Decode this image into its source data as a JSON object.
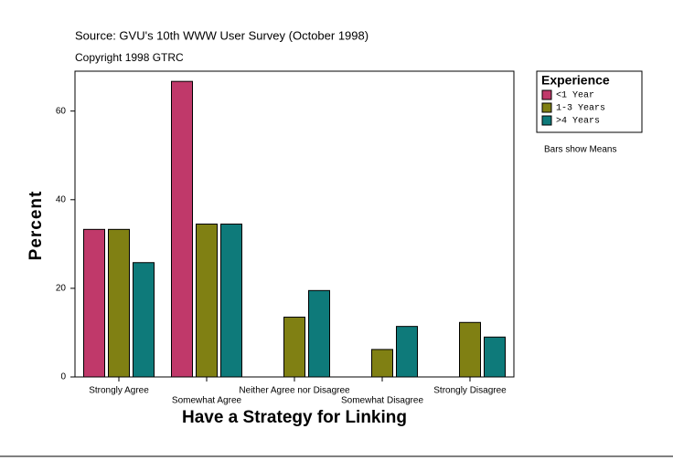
{
  "chart_data": {
    "type": "bar",
    "title": "Source: GVU's 10th WWW User Survey (October 1998)",
    "subtitle": "Copyright 1998 GTRC",
    "x_label": "Have a Strategy for Linking",
    "y_label": "Percent",
    "legend_title": "Experience",
    "note": "Bars show Means",
    "categories": [
      "Strongly Agree",
      "Somewhat Agree",
      "Neither Agree nor Disagree",
      "Somewhat Disagree",
      "Strongly Disagree"
    ],
    "series": [
      {
        "name": "<1 Year",
        "color": "#c0396a",
        "values": [
          33.3,
          66.7,
          null,
          null,
          null
        ]
      },
      {
        "name": "1-3 Years",
        "color": "#808013",
        "values": [
          33.3,
          34.5,
          13.5,
          6.2,
          12.3
        ]
      },
      {
        "name": ">4 Years",
        "color": "#0e7a7a",
        "values": [
          25.8,
          34.5,
          19.5,
          11.4,
          9.0
        ]
      }
    ],
    "ylim": [
      0,
      69
    ],
    "yticks": [
      0,
      20,
      40,
      60
    ],
    "grid": false,
    "legend_position": "right"
  }
}
